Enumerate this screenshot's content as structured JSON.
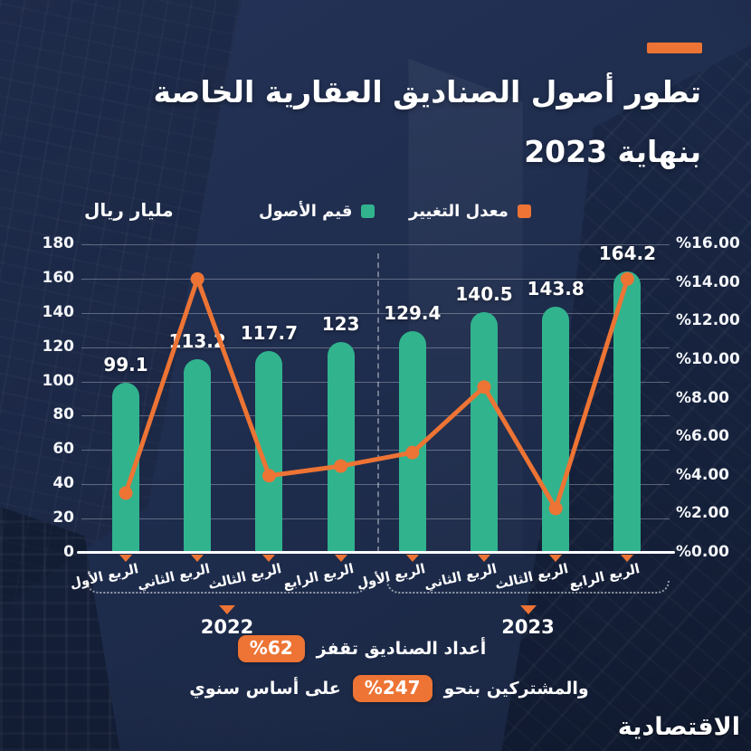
{
  "header": {
    "title_line1": "تطور أصول الصناديق العقارية الخاصة",
    "title_line2": "بنهاية 2023"
  },
  "colors": {
    "background": "#1F2D4E",
    "teal": "#31B38E",
    "orange": "#ED7434",
    "grid": "rgba(235,240,250,0.32)"
  },
  "chart_data": {
    "type": "bar+line combo",
    "categories": [
      "الربع الأول",
      "الربع الثاني",
      "الربع الثالث",
      "الربع الرابع",
      "الربع الأول",
      "الربع الثاني",
      "الربع الثالث",
      "الربع الرابع"
    ],
    "year_groups": [
      {
        "label": "2022",
        "span": [
          0,
          3
        ]
      },
      {
        "label": "2023",
        "span": [
          4,
          7
        ]
      }
    ],
    "series": [
      {
        "name": "قيم الأصول",
        "type": "bar",
        "axis": "left",
        "color": "#31B38E",
        "values": [
          99.1,
          113.2,
          117.7,
          123,
          129.4,
          140.5,
          143.8,
          164.2
        ],
        "labels": [
          "99.1",
          "113.2",
          "117.7",
          "123",
          "129.4",
          "140.5",
          "143.8",
          "164.2"
        ]
      },
      {
        "name": "معدل التغيير",
        "type": "line",
        "axis": "right",
        "color": "#ED7434",
        "values": [
          3.1,
          14.2,
          4.0,
          4.5,
          5.2,
          8.6,
          2.3,
          14.2
        ]
      }
    ],
    "left_axis": {
      "title": "مليار ريال",
      "min": 0,
      "max": 180,
      "ticks": [
        "180",
        "160",
        "140",
        "120",
        "100",
        "80",
        "60",
        "40",
        "20",
        "0"
      ]
    },
    "right_axis": {
      "min": 0,
      "max": 16,
      "ticks": [
        "%16.00",
        "%14.00",
        "%12.00",
        "%10.00",
        "%8.00",
        "%6.00",
        "%4.00",
        "%2.00",
        "%0.00"
      ]
    },
    "grid": true,
    "legend_position": "top"
  },
  "footer": {
    "line1_text": "أعداد الصناديق تقفز",
    "line1_badge": "%62",
    "line2_text_right": "والمشتركين بنحو",
    "line2_badge": "%247",
    "line2_text_left": "على أساس سنوي"
  },
  "logo": "الاقتصادية"
}
